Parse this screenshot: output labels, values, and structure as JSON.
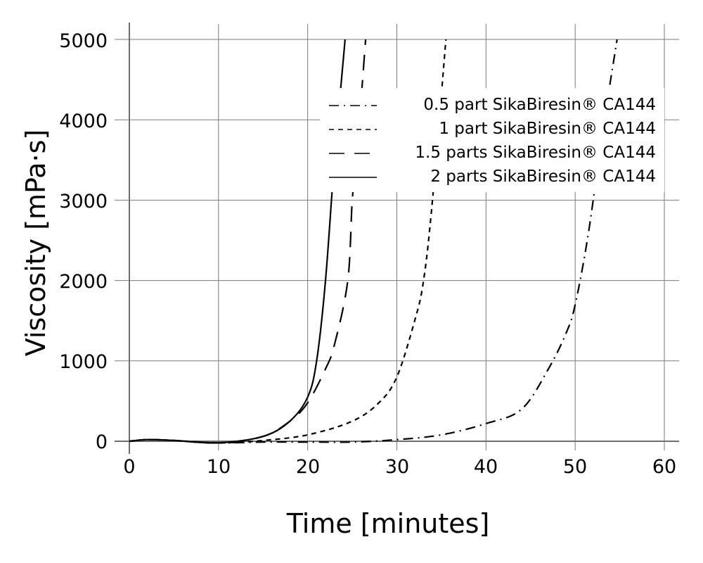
{
  "chart_data": {
    "type": "line",
    "title": "",
    "xlabel": "Time [minutes]",
    "ylabel": "Viscosity [mPa·s]",
    "xlim": [
      0,
      62
    ],
    "ylim": [
      -100,
      5000
    ],
    "xticks": [
      0,
      10,
      20,
      30,
      40,
      50,
      60
    ],
    "yticks": [
      0,
      1000,
      2000,
      3000,
      4000,
      5000
    ],
    "grid": true,
    "legend_position": "upper right",
    "series": [
      {
        "name": "0.5 part SikaBiresin® CA144",
        "style": "dash-dot",
        "x": [
          0,
          2,
          5,
          10,
          15,
          20,
          25,
          30,
          35,
          40,
          44,
          47,
          49,
          50,
          51.5,
          53,
          54.7
        ],
        "y": [
          0,
          20,
          10,
          -20,
          -10,
          -10,
          -10,
          20,
          80,
          220,
          400,
          900,
          1350,
          1700,
          2600,
          3800,
          5000
        ]
      },
      {
        "name": "1 part SikaBiresin® CA144",
        "style": "short-dash",
        "x": [
          0,
          2,
          5,
          10,
          15,
          20,
          25,
          28,
          30,
          32,
          33,
          34,
          35.5
        ],
        "y": [
          0,
          20,
          10,
          -20,
          10,
          80,
          250,
          480,
          800,
          1500,
          2000,
          3000,
          5000
        ]
      },
      {
        "name": "1.5 parts SikaBiresin® CA144",
        "style": "long-dash",
        "x": [
          0,
          2,
          5,
          10,
          15,
          18,
          20,
          22,
          23,
          24.5,
          25,
          25.6,
          26.5
        ],
        "y": [
          0,
          20,
          10,
          -20,
          60,
          250,
          480,
          900,
          1200,
          2000,
          3000,
          3700,
          5000
        ]
      },
      {
        "name": "2 parts SikaBiresin® CA144",
        "style": "solid",
        "x": [
          0,
          2,
          5,
          10,
          15,
          18,
          20,
          21,
          22,
          23,
          24.2
        ],
        "y": [
          0,
          20,
          10,
          -20,
          60,
          250,
          550,
          1000,
          2000,
          3500,
          5000
        ]
      }
    ]
  },
  "axes": {
    "x_title": "Time [minutes]",
    "y_title": "Viscosity [mPa·s]",
    "x_ticks": [
      "0",
      "10",
      "20",
      "30",
      "40",
      "50",
      "60"
    ],
    "y_ticks": [
      "0",
      "1000",
      "2000",
      "3000",
      "4000",
      "5000"
    ]
  },
  "legend": {
    "items": [
      {
        "label": "0.5 part SikaBiresin® CA144",
        "style": "dash-dot"
      },
      {
        "label": "1 part SikaBiresin® CA144",
        "style": "short-dash"
      },
      {
        "label": "1.5 parts SikaBiresin® CA144",
        "style": "long-dash"
      },
      {
        "label": "2 parts SikaBiresin® CA144",
        "style": "solid"
      }
    ]
  },
  "colors": {
    "line": "#000000",
    "grid": "#7a7a7a",
    "axis": "#6e6e6e",
    "background": "#ffffff"
  }
}
